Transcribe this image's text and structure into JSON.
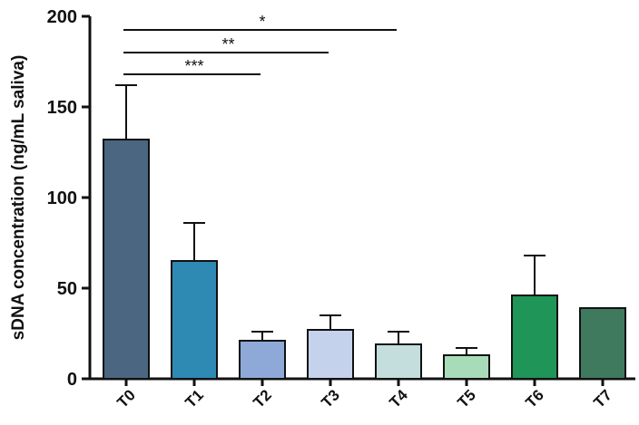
{
  "chart_data": {
    "type": "bar",
    "title": "",
    "xlabel": "",
    "ylabel": "sDNA concentration (ng/mL saliva)",
    "ylim": [
      0,
      200
    ],
    "yticks": [
      0,
      50,
      100,
      150,
      200
    ],
    "categories": [
      "T0",
      "T1",
      "T2",
      "T3",
      "T4",
      "T5",
      "T6",
      "T7"
    ],
    "values": [
      132,
      65,
      21,
      27,
      19,
      13,
      46,
      39
    ],
    "errors": [
      30,
      21,
      5,
      8,
      7,
      4,
      22,
      0
    ],
    "colors": [
      "#4a6680",
      "#2e8ab3",
      "#8ea9d8",
      "#c5d2ec",
      "#c3dedc",
      "#a8dcb8",
      "#1f9557",
      "#3f7a5f"
    ],
    "significance": [
      {
        "from": "T0",
        "to": "T4",
        "label": "*",
        "level": 1
      },
      {
        "from": "T0",
        "to": "T3",
        "label": "**",
        "level": 2
      },
      {
        "from": "T0",
        "to": "T2",
        "label": "***",
        "level": 3
      }
    ]
  }
}
